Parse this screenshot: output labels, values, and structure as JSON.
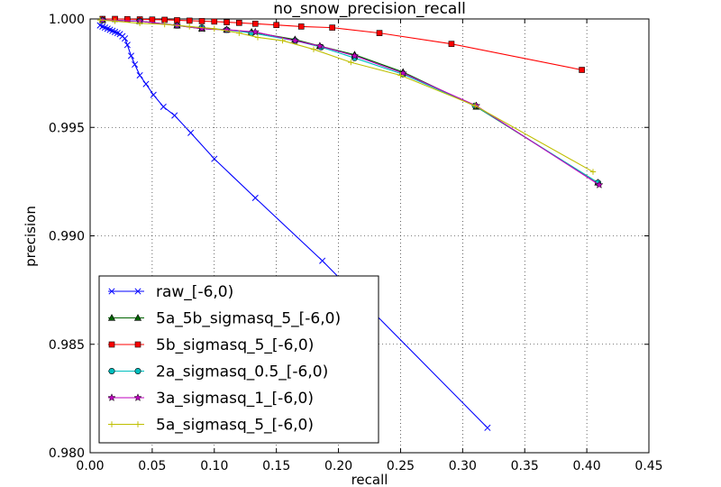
{
  "chart_data": {
    "type": "line",
    "title": "no_snow_precision_recall",
    "xlabel": "recall",
    "ylabel": "precision",
    "xlim": [
      0.0,
      0.45
    ],
    "ylim": [
      0.98,
      1.0
    ],
    "xticks": [
      "0.00",
      "0.05",
      "0.10",
      "0.15",
      "0.20",
      "0.25",
      "0.30",
      "0.35",
      "0.40",
      "0.45"
    ],
    "yticks": [
      "0.980",
      "0.985",
      "0.990",
      "0.995",
      "1.000"
    ],
    "grid": true,
    "legend_position": "lower-left",
    "series": [
      {
        "name": "raw_[-6,0)",
        "color": "#0000ff",
        "marker": "x",
        "x": [
          0.008,
          0.01,
          0.012,
          0.014,
          0.016,
          0.018,
          0.02,
          0.022,
          0.024,
          0.026,
          0.028,
          0.03,
          0.033,
          0.036,
          0.04,
          0.045,
          0.051,
          0.059,
          0.068,
          0.081,
          0.1,
          0.133,
          0.187,
          0.32
        ],
        "y": [
          0.9997,
          0.99965,
          0.9996,
          0.99955,
          0.9995,
          0.99945,
          0.9994,
          0.99935,
          0.9993,
          0.9992,
          0.9991,
          0.9988,
          0.9983,
          0.9979,
          0.9974,
          0.997,
          0.9965,
          0.99595,
          0.99555,
          0.99475,
          0.99355,
          0.99175,
          0.98885,
          0.98115
        ]
      },
      {
        "name": "5a_5b_sigmasq_5_[-6,0)",
        "color": "#006400",
        "marker": "triangle",
        "x": [
          0.01,
          0.04,
          0.07,
          0.09,
          0.11,
          0.13,
          0.165,
          0.185,
          0.213,
          0.252,
          0.311,
          0.409
        ],
        "y": [
          0.99995,
          0.9999,
          0.9997,
          0.99955,
          0.9995,
          0.9994,
          0.99905,
          0.99875,
          0.99835,
          0.99755,
          0.99595,
          0.99245
        ]
      },
      {
        "name": "5b_sigmasq_5_[-6,0)",
        "color": "#ff0000",
        "marker": "square",
        "x": [
          0.01,
          0.02,
          0.03,
          0.04,
          0.05,
          0.06,
          0.07,
          0.08,
          0.09,
          0.1,
          0.11,
          0.12,
          0.133,
          0.15,
          0.17,
          0.195,
          0.233,
          0.291,
          0.396
        ],
        "y": [
          1.0,
          1.0,
          0.99999,
          0.99998,
          0.99997,
          0.99996,
          0.99994,
          0.99992,
          0.9999,
          0.99988,
          0.99985,
          0.99982,
          0.99978,
          0.99972,
          0.99965,
          0.9996,
          0.99935,
          0.99885,
          0.99765
        ]
      },
      {
        "name": "2a_sigmasq_0.5_[-6,0)",
        "color": "#00bfbf",
        "marker": "circle",
        "x": [
          0.01,
          0.04,
          0.07,
          0.09,
          0.11,
          0.13,
          0.165,
          0.186,
          0.213,
          0.252,
          0.31,
          0.409
        ],
        "y": [
          0.99995,
          0.9999,
          0.9997,
          0.9996,
          0.9995,
          0.99935,
          0.999,
          0.9987,
          0.9982,
          0.99745,
          0.996,
          0.99245
        ]
      },
      {
        "name": "3a_sigmasq_1_[-6,0)",
        "color": "#bf00bf",
        "marker": "star",
        "x": [
          0.01,
          0.04,
          0.07,
          0.09,
          0.11,
          0.133,
          0.165,
          0.185,
          0.213,
          0.252,
          0.311,
          0.41
        ],
        "y": [
          0.99995,
          0.9999,
          0.9997,
          0.99955,
          0.9995,
          0.9994,
          0.999,
          0.99875,
          0.9983,
          0.9975,
          0.996,
          0.99235
        ]
      },
      {
        "name": "5a_sigmasq_5_[-6,0)",
        "color": "#bfbf00",
        "marker": "plus",
        "x": [
          0.008,
          0.02,
          0.04,
          0.06,
          0.08,
          0.1,
          0.12,
          0.135,
          0.155,
          0.18,
          0.21,
          0.25,
          0.31,
          0.405
        ],
        "y": [
          0.99995,
          0.9999,
          0.9998,
          0.99975,
          0.99965,
          0.99955,
          0.99935,
          0.99915,
          0.999,
          0.9986,
          0.998,
          0.9974,
          0.996,
          0.99295
        ]
      }
    ]
  }
}
